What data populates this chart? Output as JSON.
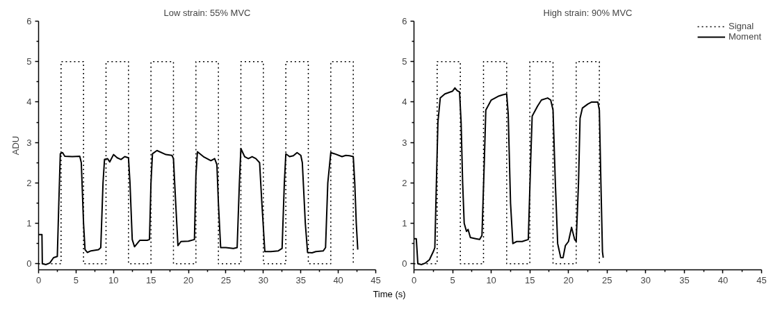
{
  "chart_data": [
    {
      "type": "line",
      "title": "Low strain: 55% MVC",
      "xlabel": "Time (s)",
      "ylabel": "ADU",
      "xlim": [
        0,
        45
      ],
      "ylim": [
        -0.15,
        6
      ],
      "xticks": [
        0,
        5,
        10,
        15,
        20,
        25,
        30,
        35,
        40,
        45
      ],
      "yticks": [
        0,
        1,
        2,
        3,
        4,
        5,
        6
      ],
      "grid": false,
      "legend": false,
      "series": [
        {
          "color": "#000000",
          "line_style": "dotted",
          "x": [
            0,
            3,
            3,
            6,
            6,
            9,
            9,
            12,
            12,
            15,
            15,
            18,
            18,
            21,
            21,
            24,
            24,
            27,
            27,
            30,
            30,
            33,
            33,
            36,
            36,
            39,
            39,
            42,
            42
          ],
          "values": [
            0,
            0,
            5,
            5,
            0,
            0,
            5,
            5,
            0,
            0,
            5,
            5,
            0,
            0,
            5,
            5,
            0,
            0,
            5,
            5,
            0,
            0,
            5,
            5,
            0,
            0,
            5,
            5,
            0
          ]
        },
        {
          "color": "#000000",
          "line_style": "solid",
          "x": [
            0,
            0.45,
            0.5,
            1,
            1.5,
            2,
            2.5,
            2.7,
            2.9,
            3.2,
            3.5,
            4.5,
            5.5,
            5.7,
            6.0,
            6.2,
            6.5,
            7,
            8,
            8.3,
            8.6,
            8.8,
            9.2,
            9.5,
            10,
            10.5,
            11,
            11.5,
            12,
            12.2,
            12.5,
            12.8,
            13.5,
            14.5,
            14.8,
            15,
            15.2,
            15.8,
            17,
            17.8,
            18,
            18.3,
            18.6,
            19,
            20,
            20.8,
            21,
            21.2,
            22,
            23,
            23.5,
            23.8,
            24,
            24.3,
            25,
            26,
            26.5,
            26.8,
            27,
            27.5,
            28,
            28.5,
            29,
            29.5,
            29.8,
            30.2,
            31,
            32,
            32.5,
            32.8,
            33,
            33.5,
            34,
            34.5,
            35,
            35.2,
            35.6,
            35.9,
            36.5,
            37,
            38,
            38.3,
            38.6,
            39,
            39.5,
            40.5,
            41,
            41.5,
            42,
            42.2,
            42.4,
            42.6
          ],
          "values": [
            0.72,
            0.72,
            0,
            -0.02,
            0.02,
            0.15,
            0.18,
            1.5,
            2.72,
            2.75,
            2.66,
            2.65,
            2.66,
            2.5,
            1.0,
            0.35,
            0.28,
            0.32,
            0.35,
            0.4,
            2.0,
            2.58,
            2.6,
            2.52,
            2.7,
            2.62,
            2.58,
            2.65,
            2.62,
            2.0,
            0.6,
            0.42,
            0.58,
            0.58,
            0.6,
            2.0,
            2.72,
            2.8,
            2.7,
            2.68,
            2.6,
            1.5,
            0.45,
            0.55,
            0.56,
            0.6,
            2.2,
            2.77,
            2.65,
            2.55,
            2.6,
            2.45,
            1.5,
            0.4,
            0.4,
            0.38,
            0.4,
            2.0,
            2.85,
            2.65,
            2.6,
            2.65,
            2.6,
            2.5,
            1.5,
            0.3,
            0.3,
            0.32,
            0.38,
            2.0,
            2.72,
            2.65,
            2.67,
            2.75,
            2.68,
            2.5,
            1.0,
            0.28,
            0.27,
            0.3,
            0.32,
            0.4,
            2.0,
            2.75,
            2.72,
            2.65,
            2.68,
            2.67,
            2.65,
            2.0,
            1.0,
            0.35
          ]
        }
      ]
    },
    {
      "type": "line",
      "title": "High strain: 90% MVC",
      "xlim": [
        0,
        45
      ],
      "ylim": [
        -0.15,
        6
      ],
      "xticks": [
        0,
        5,
        10,
        15,
        20,
        25,
        30,
        35,
        40,
        45
      ],
      "yticks": [
        0,
        1,
        2,
        3,
        4,
        5,
        6
      ],
      "grid": false,
      "legend": "top right",
      "series": [
        {
          "name": "Signal",
          "color": "#000000",
          "line_style": "dotted",
          "x": [
            0,
            3,
            3,
            6,
            6,
            9,
            9,
            12,
            12,
            15,
            15,
            18,
            18,
            21,
            21,
            24,
            24
          ],
          "values": [
            0,
            0,
            5,
            5,
            0,
            0,
            5,
            5,
            0,
            0,
            5,
            5,
            0,
            0,
            5,
            5,
            0
          ]
        },
        {
          "name": "Moment",
          "color": "#000000",
          "line_style": "solid",
          "x": [
            0,
            0.3,
            0.5,
            1,
            1.5,
            2,
            2.5,
            2.7,
            2.9,
            3.1,
            3.4,
            4,
            5,
            5.3,
            5.6,
            5.9,
            6.1,
            6.3,
            6.5,
            6.8,
            7,
            7.3,
            8,
            8.5,
            8.8,
            9.1,
            9.3,
            10,
            11,
            11.5,
            12,
            12.2,
            12.5,
            12.8,
            13.3,
            14,
            14.8,
            15.1,
            15.3,
            16,
            16.5,
            17.3,
            17.7,
            18,
            18.3,
            18.6,
            19,
            19.3,
            19.6,
            20,
            20.4,
            20.8,
            21,
            21.3,
            21.5,
            21.8,
            22.5,
            23,
            23.8,
            24,
            24.2,
            24.4,
            24.5
          ],
          "values": [
            0.62,
            0.62,
            0.0,
            -0.02,
            0.02,
            0.1,
            0.3,
            0.4,
            2.0,
            3.5,
            4.1,
            4.2,
            4.27,
            4.35,
            4.28,
            4.25,
            3.5,
            2.0,
            1.0,
            0.8,
            0.85,
            0.65,
            0.62,
            0.6,
            0.7,
            2.5,
            3.8,
            4.05,
            4.15,
            4.18,
            4.2,
            3.7,
            1.5,
            0.5,
            0.55,
            0.55,
            0.6,
            2.5,
            3.65,
            3.9,
            4.05,
            4.1,
            4.05,
            3.8,
            2.0,
            0.5,
            0.15,
            0.15,
            0.45,
            0.55,
            0.9,
            0.6,
            0.55,
            2.0,
            3.6,
            3.85,
            3.95,
            4.0,
            4.0,
            3.8,
            2.0,
            0.3,
            0.15
          ]
        }
      ]
    }
  ]
}
